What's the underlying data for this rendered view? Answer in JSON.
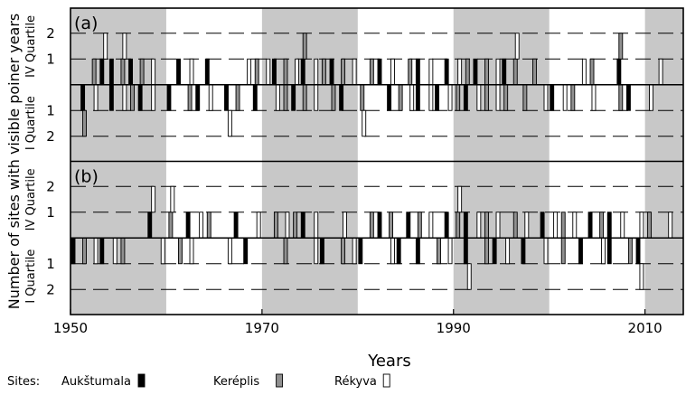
{
  "chart_data": {
    "type": "bar",
    "xlabel": "Years",
    "ylabel": "Number of sites with visible poiner years",
    "xlim": [
      1950,
      2014
    ],
    "x_ticks": [
      1950,
      1970,
      1990,
      2010
    ],
    "y_ticks": [
      "2",
      "1",
      "1",
      "2"
    ],
    "legend": {
      "prefix": "Sites:",
      "placement": "bottom",
      "entries": [
        {
          "name": "Aukštumala",
          "color": "#000000"
        },
        {
          "name": "Keréplis",
          "color": "#909090"
        },
        {
          "name": "Rékyva",
          "color": "#ffffff"
        }
      ]
    },
    "shaded_decades": [
      [
        1950,
        1960
      ],
      [
        1970,
        1980
      ],
      [
        1990,
        2000
      ],
      [
        2010,
        2014
      ]
    ],
    "panels": [
      {
        "tag": "(a)",
        "upper_label": "IV Quartile",
        "lower_label": "I Quartile",
        "upper": {
          "Aukštumala": [
            1953,
            1954,
            1956,
            1961,
            1964,
            1971,
            1974,
            1977,
            1982,
            1986,
            1989,
            1992,
            1995,
            2007
          ],
          "Keréplis": [
            1952,
            1955,
            1957,
            1969,
            1972,
            1974,
            1976,
            1978,
            1981,
            1985,
            1991,
            1993,
            1996,
            1998,
            2004,
            2007
          ],
          "Rékyva": [
            1953,
            1955,
            1958,
            1962,
            1968,
            1970,
            1973,
            1975,
            1979,
            1983,
            1987,
            1990,
            1994,
            1996,
            2003,
            2011
          ]
        },
        "lower": {
          "Aukštumala": [
            1951,
            1954,
            1957,
            1960,
            1963,
            1966,
            1969,
            1973,
            1978,
            1983,
            1986,
            1988,
            1991,
            2000,
            2008
          ],
          "Keréplis": [
            1951,
            1956,
            1962,
            1967,
            1972,
            1974,
            1977,
            1980,
            1984,
            1990,
            1993,
            1995,
            1997,
            2002,
            2007
          ],
          "Rékyva": [
            1952,
            1955,
            1958,
            1964,
            1966,
            1971,
            1975,
            1980,
            1985,
            1987,
            1989,
            1992,
            1994,
            1999,
            2001,
            2004,
            2010
          ]
        }
      },
      {
        "tag": "(b)",
        "upper_label": "IV Quartile",
        "lower_label": "I Quartile",
        "upper": {
          "Aukštumala": [
            1958,
            1962,
            1967,
            1974,
            1982,
            1985,
            1989,
            1991,
            1999,
            2004,
            2006
          ],
          "Keréplis": [
            1960,
            1964,
            1971,
            1973,
            1981,
            1983,
            1986,
            1990,
            1993,
            1996,
            2001,
            2005,
            2010
          ],
          "Rékyva": [
            1958,
            1960,
            1963,
            1969,
            1972,
            1975,
            1978,
            1987,
            1990,
            1992,
            1994,
            1997,
            2000,
            2002,
            2007,
            2009,
            2012
          ]
        },
        "lower": {
          "Aukštumala": [
            1950,
            1953,
            1968,
            1976,
            1980,
            1984,
            1986,
            1991,
            1994,
            1997,
            2003,
            2006,
            2009
          ],
          "Keréplis": [
            1951,
            1955,
            1961,
            1972,
            1978,
            1988,
            1993,
            2001,
            2008
          ],
          "Rékyva": [
            1952,
            1954,
            1959,
            1962,
            1966,
            1975,
            1979,
            1983,
            1989,
            1991,
            1995,
            1999,
            2005,
            2009
          ]
        }
      }
    ]
  }
}
